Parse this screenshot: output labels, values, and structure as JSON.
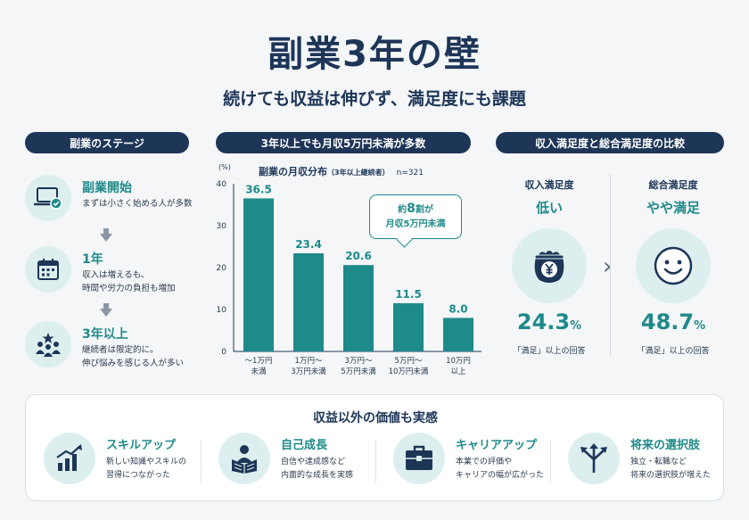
{
  "header": {
    "title": "副業3年の壁",
    "subtitle": "続けても収益は伸びず、満足度にも課題"
  },
  "sections": {
    "stages_label": "副業のステージ",
    "chart_label": "3年以上でも月収5万円未満が多数",
    "satisfaction_label": "収入満足度と総合満足度の比較"
  },
  "stages": [
    {
      "icon": "laptop-check-icon",
      "title": "副業開始",
      "desc_lines": [
        "まずは小さく始める人が多数"
      ]
    },
    {
      "icon": "calendar-icon",
      "title": "1年",
      "desc_lines": [
        "収入は増えるも、",
        "時間や労力の負担も増加"
      ]
    },
    {
      "icon": "people-star-icon",
      "title": "3年以上",
      "desc_lines": [
        "継続者は限定的に。",
        "伸び悩みを感じる人が多い"
      ]
    }
  ],
  "chart_data": {
    "type": "bar",
    "title": "副業の月収分布",
    "title_note": "（3年以上継続者）",
    "sample": "n=321",
    "unit": "(%)",
    "categories": [
      [
        "～1万円",
        "未満"
      ],
      [
        "1万円～",
        "3万円未満"
      ],
      [
        "3万円～",
        "5万円未満"
      ],
      [
        "5万円～",
        "10万円未満"
      ],
      [
        "10万円",
        "以上"
      ]
    ],
    "values": [
      36.5,
      23.4,
      20.6,
      11.5,
      8.0
    ],
    "value_labels": [
      "36.5",
      "23.4",
      "20.6",
      "11.5",
      "8.0"
    ],
    "ylim": [
      0,
      40
    ],
    "yticks": [
      "0",
      "10",
      "20",
      "30",
      "40"
    ],
    "bar_color": "#1f8a8a",
    "callout": {
      "line1_pre": "約",
      "line1_big": "8",
      "line1_post": "割が",
      "line2": "月収5万円未満"
    }
  },
  "satisfaction": {
    "income": {
      "label": "収入満足度",
      "level": "低い",
      "value": "24.3",
      "unit": "%",
      "note": "「満足」以上の回答",
      "icon": "wallet-yen-icon"
    },
    "overall": {
      "label": "総合満足度",
      "level": "やや満足",
      "value": "48.7",
      "unit": "%",
      "note": "「満足」以上の回答",
      "icon": "smile-face-icon"
    }
  },
  "values_panel": {
    "title": "収益以外の価値も実感",
    "items": [
      {
        "icon": "growth-chart-icon",
        "title": "スキルアップ",
        "desc_lines": [
          "新しい知識やスキルの",
          "習得につながった"
        ]
      },
      {
        "icon": "reading-person-icon",
        "title": "自己成長",
        "desc_lines": [
          "自信や達成感など",
          "内面的な成長を実感"
        ]
      },
      {
        "icon": "briefcase-icon",
        "title": "キャリアアップ",
        "desc_lines": [
          "本業での評価や",
          "キャリアの幅が広がった"
        ]
      },
      {
        "icon": "branching-arrows-icon",
        "title": "将来の選択肢",
        "desc_lines": [
          "独立・転職など",
          "将来の選択肢が増えた"
        ]
      }
    ]
  },
  "colors": {
    "navy": "#1d3557",
    "teal": "#1f8a8a",
    "light_teal": "#dcefee"
  }
}
